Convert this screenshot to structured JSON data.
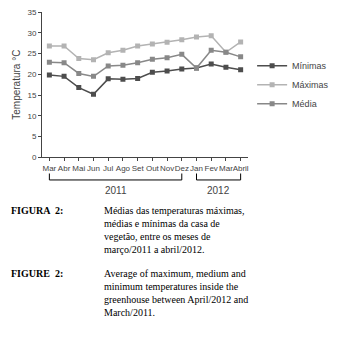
{
  "chart_data": {
    "type": "line",
    "categories": [
      "Mar",
      "Abr",
      "Mai",
      "Jun",
      "Jul",
      "Ago",
      "Set",
      "Out",
      "Nov",
      "Dez",
      "Jan",
      "Fev",
      "Mar",
      "Abril"
    ],
    "series": [
      {
        "name": "Mínimas",
        "color": "#4d4d4d",
        "marker": "square",
        "values": [
          19.8,
          19.5,
          16.8,
          15.2,
          18.9,
          18.8,
          19.0,
          20.5,
          20.8,
          21.3,
          21.5,
          22.5,
          21.7,
          21.1
        ]
      },
      {
        "name": "Máximas",
        "color": "#b3b3b3",
        "marker": "square",
        "values": [
          26.8,
          26.8,
          23.8,
          23.5,
          25.2,
          25.8,
          26.8,
          27.3,
          27.7,
          28.3,
          29.0,
          29.3,
          25.3,
          27.8
        ]
      },
      {
        "name": "Média",
        "color": "#888888",
        "marker": "square",
        "values": [
          22.9,
          22.8,
          20.2,
          19.5,
          22.0,
          22.2,
          22.8,
          23.6,
          24.0,
          24.8,
          21.5,
          25.8,
          25.3,
          24.2
        ]
      }
    ],
    "y_label": "Temperatura °C",
    "ylim": [
      0,
      35
    ],
    "yticks": [
      0,
      5,
      10,
      15,
      20,
      25,
      30,
      35
    ],
    "grid": false,
    "legend": "right",
    "annotations": [
      {
        "text": "2011",
        "start": 0,
        "end": 9
      },
      {
        "text": "2012",
        "start": 10,
        "end": 13
      }
    ],
    "caption": [
      {
        "label": "FIGURA  2:",
        "text": "Médias das temperaturas máximas,\nmédias e mínimas da casa de\nvegetão, entre os meses de\nmarço/2011 a abril/2012."
      },
      {
        "label": "FIGURE  2:",
        "text": "Average of maximum, medium and\nminimum temperatures inside the\ngreenhouse between April/2012 and\nMarch/2011."
      }
    ]
  }
}
